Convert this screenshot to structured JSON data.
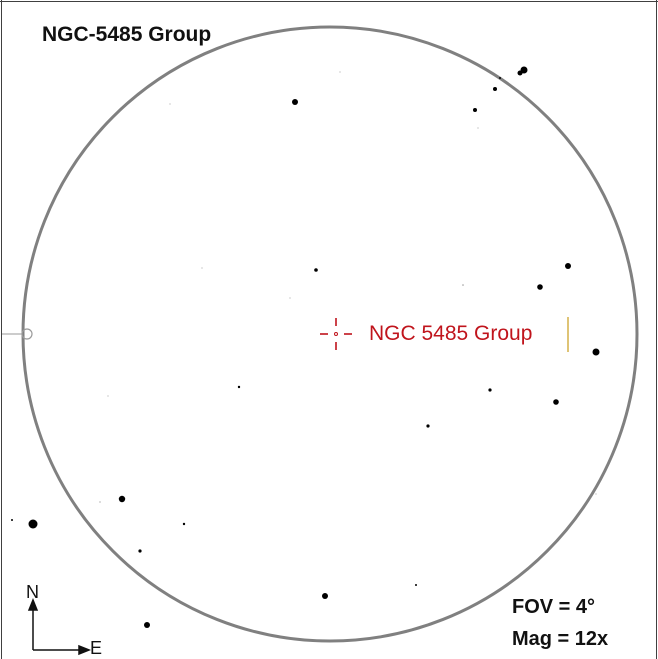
{
  "title": "NGC-5485 Group",
  "target": {
    "label": "NGC 5485 Group",
    "color": "#c0141c"
  },
  "fov_label": "FOV = 4°",
  "mag_label": "Mag = 12x",
  "compass": {
    "north": "N",
    "east": "E"
  },
  "colors": {
    "fov_circle": "#808080",
    "frame": "#404040",
    "stars": "#000000",
    "marker_line": "#d4b048"
  }
}
